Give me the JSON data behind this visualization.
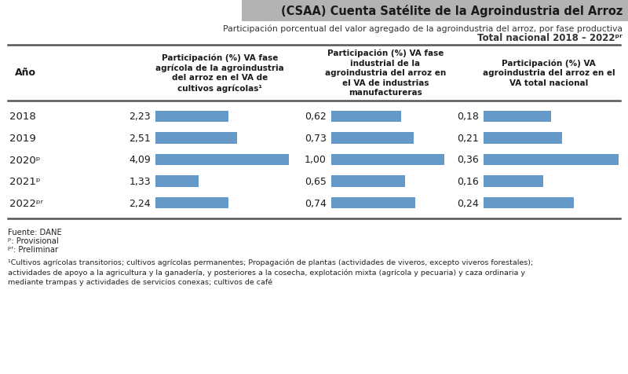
{
  "title": "(CSAA) Cuenta Satélite de la Agroindustria del Arroz",
  "subtitle1": "Participación porcentual del valor agregado de la agroindustria del arroz, por fase productiva",
  "subtitle2": "Total nacional 2018 – 2022",
  "subtitle2_sup": "pr",
  "years": [
    "2018",
    "2019",
    "2020ᵖ",
    "2021ᵖ",
    "2022ᵖʳ"
  ],
  "col1_values": [
    2.23,
    2.51,
    4.09,
    1.33,
    2.24
  ],
  "col2_values": [
    0.62,
    0.73,
    1.0,
    0.65,
    0.74
  ],
  "col3_values": [
    0.18,
    0.21,
    0.36,
    0.16,
    0.24
  ],
  "col1_label": "Participación (%) VA fase\nagrícola de la agroindustria\ndel arroz en el VA de\ncultivos agrícolas¹",
  "col2_label": "Participación (%) VA fase\nindustrial de la\nagroindustria del arroz en\nel VA de industrias\nmanufactureras",
  "col3_label": "Participación (%) VA\nagroindustria del arroz en el\nVA total nacional",
  "year_label": "Año",
  "bar_color": "#6499c8",
  "title_bg": "#b3b3b3",
  "footnote1": "Fuente: DANE",
  "footnote2_pre": "ᵖ",
  "footnote2_post": ": Provisional",
  "footnote3_pre": "ᵖʳ",
  "footnote3_post": ": Preliminar",
  "footnote4": "¹Cultivos agrícolas transitorios; cultivos agrícolas permanentes; Propagación de plantas (actividades de viveros, excepto viveros forestales);\nactividades de apoyo a la agricultura y la ganadería, y posteriores a la cosecha, explotación mixta (agrícola y pecuaria) y caza ordinaria y\nmediante trampas y actividades de servicios conexas; cultivos de café",
  "col1_max": 4.09,
  "col2_max": 1.0,
  "col3_max": 0.36,
  "bg_color": "#ffffff"
}
